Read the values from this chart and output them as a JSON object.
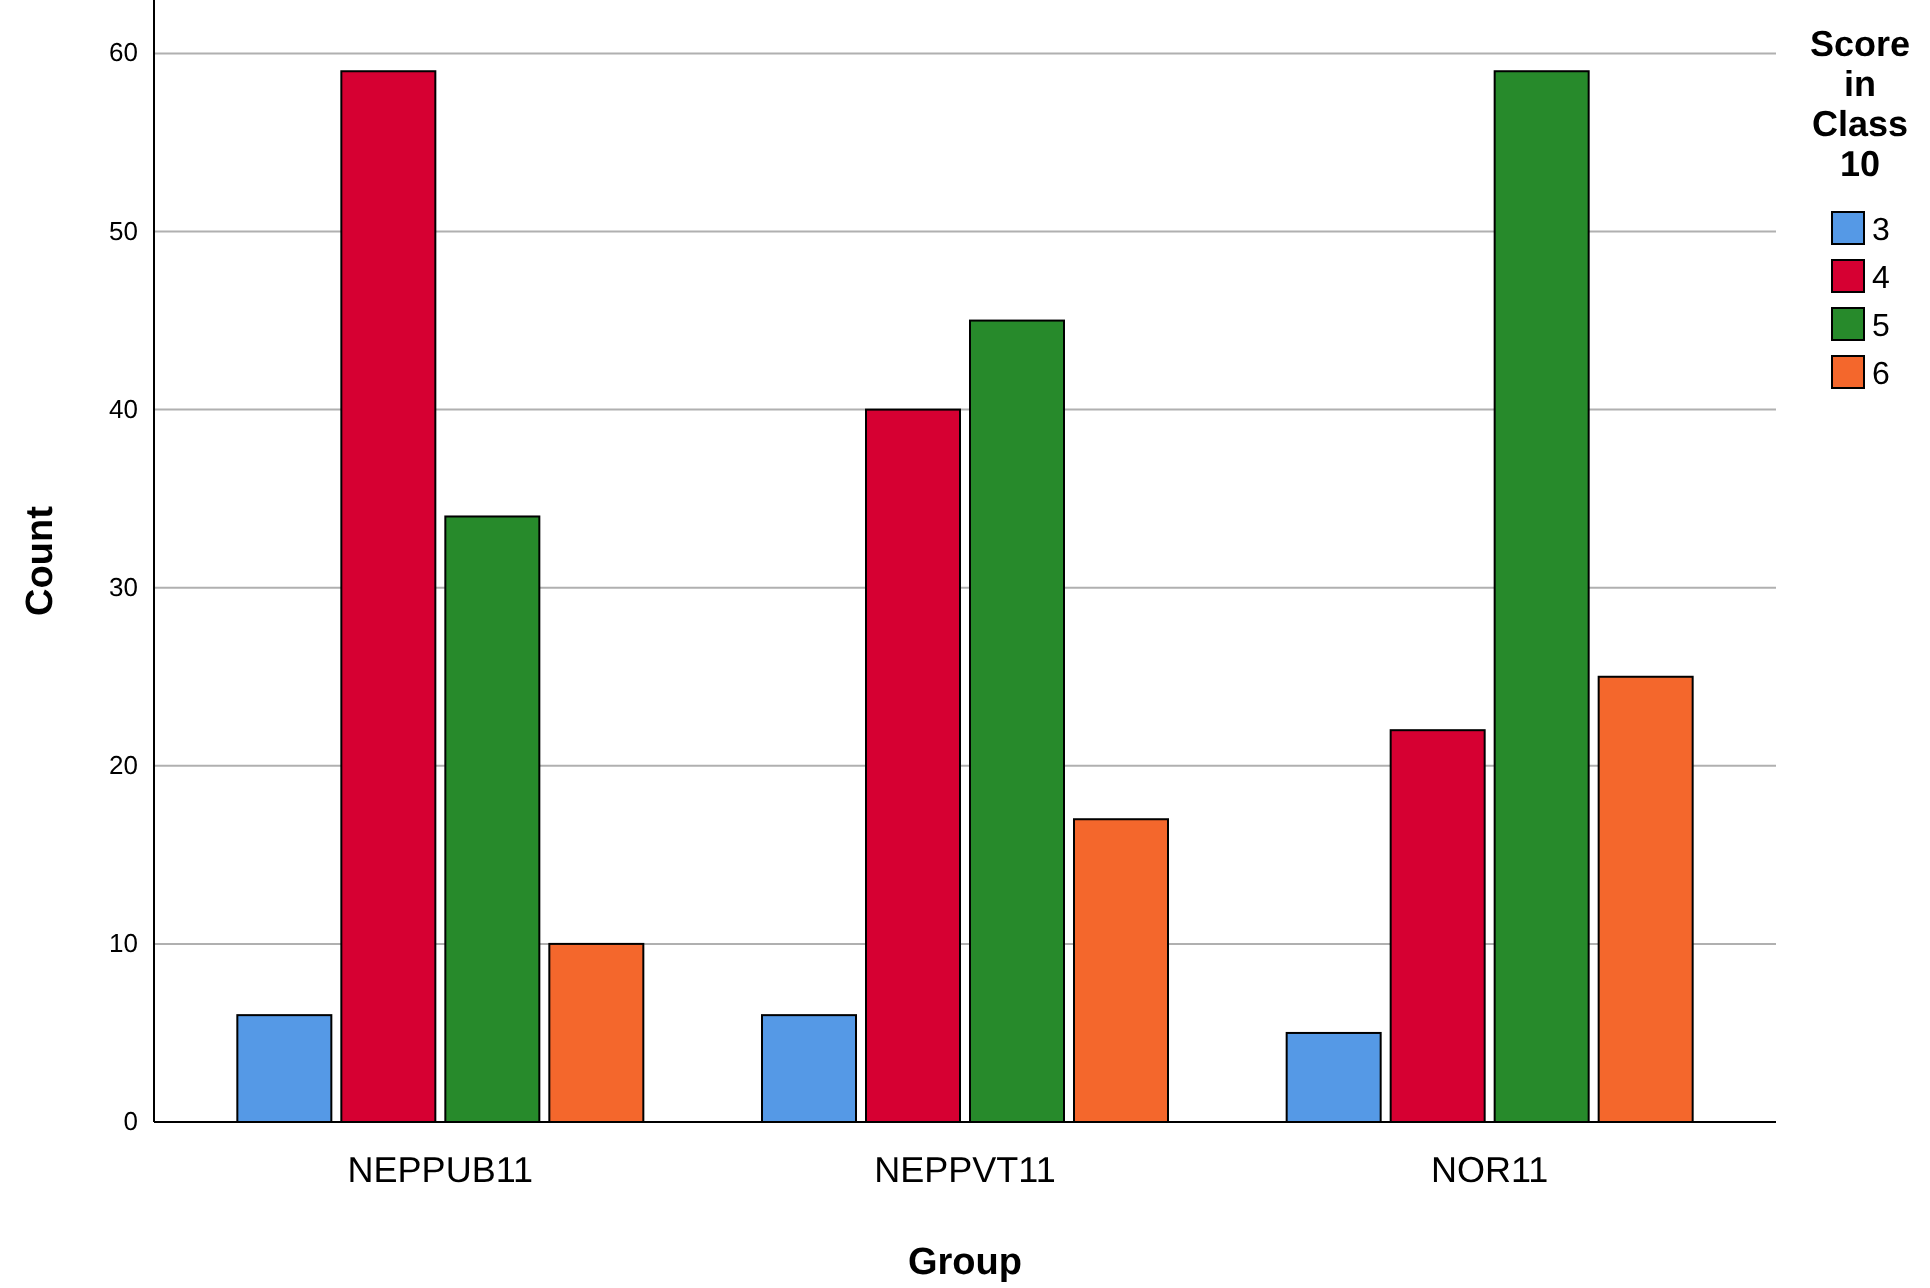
{
  "chart_data": {
    "type": "bar",
    "xlabel": "Group",
    "ylabel": "Count",
    "legend_title": "Score in Class 10",
    "categories": [
      "NEPPUB11",
      "NEPPVT11",
      "NOR11"
    ],
    "series": [
      {
        "name": "3",
        "color": "#5599e6",
        "values": [
          6,
          6,
          5
        ]
      },
      {
        "name": "4",
        "color": "#d60032",
        "values": [
          59,
          40,
          22
        ]
      },
      {
        "name": "5",
        "color": "#278a2b",
        "values": [
          34,
          45,
          59
        ]
      },
      {
        "name": "6",
        "color": "#f4672c",
        "values": [
          10,
          17,
          25
        ]
      }
    ],
    "ylim": [
      0,
      63
    ],
    "yticks": [
      0,
      10,
      20,
      30,
      40,
      50,
      60
    ],
    "grid": "y",
    "legend": "right"
  }
}
